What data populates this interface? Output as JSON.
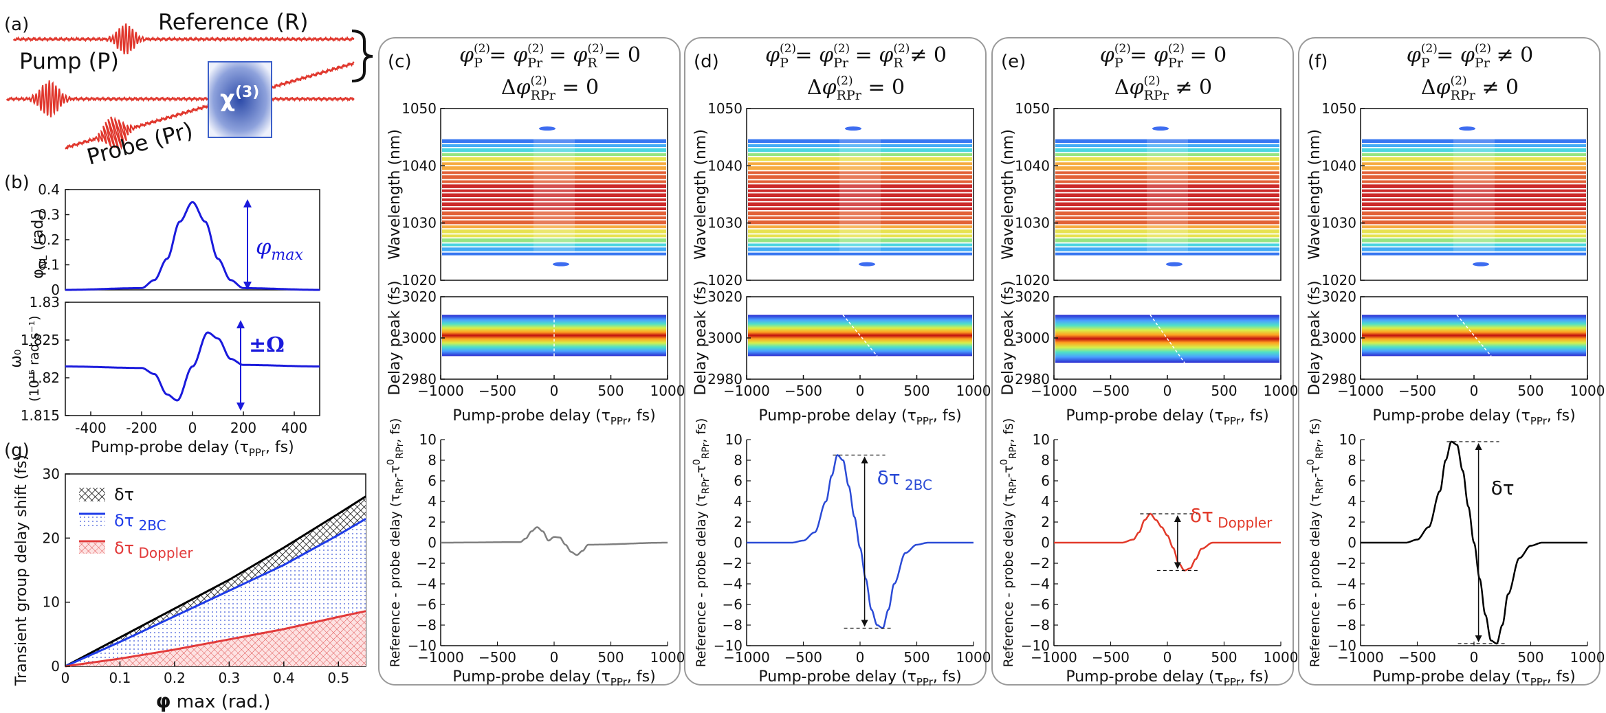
{
  "panel_a": {
    "label": "(a)",
    "reference": "Reference (R)",
    "pump": "Pump (P)",
    "probe": "Probe (Pr)",
    "chi_base": "χ",
    "chi_sup": "(3)",
    "pulse_color": "#e0362c"
  },
  "panel_b": {
    "label": "(b)",
    "top_ylabel_base": "φ",
    "top_ylabel_sub": "NL",
    "top_ylabel_unit": "(rad.)",
    "top_yticks": [
      "0",
      "0.1",
      "0.2",
      "0.3",
      "0.4"
    ],
    "phi_max_base": "φ",
    "phi_max_sub": "max",
    "bottom_ylabel_1": "ω₀",
    "bottom_ylabel_2": "(10¹⁵ rad s⁻¹)",
    "bottom_yticks": [
      "1.815",
      "1.82",
      "1.825",
      "1.83"
    ],
    "omega_label": "±Ω",
    "xticks": [
      "-400",
      "-200",
      "0",
      "200",
      "400"
    ],
    "xlabel_base": "Pump-probe delay (τ",
    "xlabel_sub": "PPr",
    "xlabel_end": ", fs)",
    "curve_color": "#1a1adc"
  },
  "panel_g": {
    "label": "(g)",
    "ylabel": "Transient group delay shift (fs)",
    "yticks": [
      "0",
      "10",
      "20",
      "30"
    ],
    "xticks": [
      "0",
      "0.1",
      "0.2",
      "0.3",
      "0.4",
      "0.5"
    ],
    "xlabel_base": "φ",
    "xlabel_rest": " max (rad.)",
    "legend": [
      {
        "base": "δτ",
        "sub": "",
        "color": "#000000"
      },
      {
        "base": "δτ",
        "sub": " 2BC",
        "color": "#1f3ce8"
      },
      {
        "base": "δτ",
        "sub": " Doppler",
        "color": "#e23a3a"
      }
    ]
  },
  "shared": {
    "wavelength_ylabel": "Wavelength (nm)",
    "wavelength_yticks": [
      "1020",
      "1030",
      "1040",
      "1050"
    ],
    "delaypeak_ylabel": "Delay peak (fs)",
    "delaypeak_yticks": [
      "2980",
      "3000",
      "3020"
    ],
    "delay_xticks": [
      "−1000",
      "−500",
      "0",
      "500",
      "1000"
    ],
    "bottom_ylabel_a": "Reference - probe delay (τ",
    "bottom_ylabel_sub": "RPr",
    "bottom_ylabel_b": "-τ",
    "bottom_ylabel_sup": "0",
    "bottom_ylabel_sub2": "RPr",
    "bottom_ylabel_c": ", fs)",
    "bottom_yticks": [
      "−10",
      "−8",
      "−6",
      "−4",
      "−2",
      "0",
      "2",
      "4",
      "6",
      "8",
      "10"
    ],
    "xlabel_base": "Pump-probe delay (τ",
    "xlabel_sub": "PPr",
    "xlabel_end": ", fs)"
  },
  "panels": [
    {
      "label": "(c)",
      "h1": "φ(2)P = φ(2)Pr = φ(2)R = 0",
      "h2": "Δφ(2)RPr = 0",
      "curve_color": "#7f7f7f",
      "annotation": ""
    },
    {
      "label": "(d)",
      "h1": "φ(2)P = φ(2)Pr = φ(2)R ≠ 0",
      "h2": "Δφ(2)RPr = 0",
      "curve_color": "#2b4bd6",
      "annotation": "δτ 2BC"
    },
    {
      "label": "(e)",
      "h1": "φ(2)P = φ(2)Pr = 0",
      "h2": "Δφ(2)RPr ≠ 0",
      "curve_color": "#e23a2a",
      "annotation": "δτ Doppler"
    },
    {
      "label": "(f)",
      "h1": "φ(2)P = φ(2)Pr ≠ 0",
      "h2": "Δφ(2)RPr ≠ 0",
      "curve_color": "#000000",
      "annotation": "δτ"
    }
  ],
  "chart_data": [
    {
      "type": "line",
      "panel": "(b) top",
      "title": "",
      "xlabel": "Pump-probe delay (τPPr, fs)",
      "ylabel": "φNL (rad.)",
      "xlim": [
        -500,
        500
      ],
      "ylim": [
        0,
        0.4
      ],
      "x": [
        -500,
        -200,
        -150,
        -100,
        -50,
        0,
        50,
        100,
        150,
        200,
        500
      ],
      "values": [
        0,
        0.007,
        0.039,
        0.124,
        0.272,
        0.35,
        0.272,
        0.124,
        0.039,
        0.007,
        0
      ]
    },
    {
      "type": "line",
      "panel": "(b) bottom",
      "xlabel": "Pump-probe delay (τPPr, fs)",
      "ylabel": "ω0 (10^15 rad s^-1)",
      "xlim": [
        -500,
        500
      ],
      "ylim": [
        1.815,
        1.83
      ],
      "x": [
        -500,
        -200,
        -150,
        -100,
        -60,
        0,
        60,
        100,
        150,
        200,
        500
      ],
      "values": [
        1.8215,
        1.8213,
        1.8205,
        1.8178,
        1.817,
        1.8215,
        1.826,
        1.8252,
        1.8225,
        1.8217,
        1.8215
      ]
    },
    {
      "type": "area",
      "panel": "(g)",
      "xlabel": "φ max (rad.)",
      "ylabel": "Transient group delay shift (fs)",
      "xlim": [
        0,
        0.55
      ],
      "ylim": [
        0,
        30
      ],
      "x": [
        0,
        0.1,
        0.2,
        0.3,
        0.4,
        0.5,
        0.55
      ],
      "series": [
        {
          "name": "δτ",
          "values": [
            0,
            4.5,
            9.0,
            13.5,
            18.5,
            23.8,
            26.5
          ]
        },
        {
          "name": "δτ 2BC",
          "values": [
            0,
            3.8,
            7.8,
            11.8,
            15.8,
            20.5,
            23
          ]
        },
        {
          "name": "δτ Doppler",
          "values": [
            0,
            1.2,
            2.6,
            4.2,
            5.8,
            7.7,
            8.6
          ]
        }
      ]
    },
    {
      "type": "line",
      "panel": "(c) bottom",
      "xlabel": "Pump-probe delay (τPPr, fs)",
      "ylabel": "Reference - probe delay (τRPr-τ0RPr, fs)",
      "xlim": [
        -1000,
        1000
      ],
      "ylim": [
        -10,
        10
      ],
      "x": [
        -1000,
        -300,
        -250,
        -200,
        -150,
        -100,
        -50,
        0,
        50,
        100,
        150,
        200,
        250,
        300,
        1000
      ],
      "values": [
        0,
        0.05,
        0.4,
        1.1,
        1.5,
        1.1,
        0.2,
        0.55,
        0.5,
        -0.2,
        -0.9,
        -1.2,
        -0.8,
        -0.2,
        0
      ]
    },
    {
      "type": "line",
      "panel": "(d) bottom",
      "xlabel": "Pump-probe delay (τPPr, fs)",
      "ylabel": "Reference - probe delay (τRPr-τ0RPr, fs)",
      "xlim": [
        -1000,
        1000
      ],
      "ylim": [
        -10,
        10
      ],
      "x": [
        -1000,
        -600,
        -500,
        -400,
        -300,
        -250,
        -200,
        -150,
        -100,
        -50,
        0,
        50,
        100,
        150,
        200,
        250,
        300,
        400,
        500,
        600,
        1000
      ],
      "values": [
        0,
        0,
        0.2,
        1.0,
        4.0,
        6.5,
        8.5,
        8.0,
        5.5,
        2.5,
        -0.5,
        -3.5,
        -6.5,
        -8.0,
        -8.3,
        -6.5,
        -4.0,
        -1.0,
        -0.2,
        0,
        0
      ]
    },
    {
      "type": "line",
      "panel": "(e) bottom",
      "xlabel": "Pump-probe delay (τPPr, fs)",
      "ylabel": "Reference - probe delay (τRPr-τ0RPr, fs)",
      "xlim": [
        -1000,
        1000
      ],
      "ylim": [
        -10,
        10
      ],
      "x": [
        -1000,
        -400,
        -300,
        -250,
        -200,
        -150,
        -100,
        -50,
        0,
        50,
        100,
        150,
        200,
        250,
        300,
        400,
        1000
      ],
      "values": [
        0,
        0,
        0.3,
        1.0,
        2.2,
        2.8,
        2.2,
        1.5,
        0.7,
        -0.5,
        -2.0,
        -2.7,
        -2.5,
        -1.6,
        -0.6,
        0,
        0
      ]
    },
    {
      "type": "line",
      "panel": "(f) bottom",
      "xlabel": "Pump-probe delay (τPPr, fs)",
      "ylabel": "Reference - probe delay (τRPr-τ0RPr, fs)",
      "xlim": [
        -1000,
        1000
      ],
      "ylim": [
        -10,
        10
      ],
      "x": [
        -1000,
        -600,
        -500,
        -400,
        -300,
        -250,
        -200,
        -150,
        -100,
        -50,
        0,
        50,
        100,
        150,
        200,
        250,
        300,
        400,
        500,
        600,
        1000
      ],
      "values": [
        0,
        0,
        0.3,
        1.5,
        5.0,
        8.0,
        9.8,
        9.5,
        7.0,
        3.5,
        0,
        -3.5,
        -7.0,
        -9.5,
        -9.8,
        -8.0,
        -5.0,
        -1.5,
        -0.3,
        0,
        0
      ]
    }
  ]
}
